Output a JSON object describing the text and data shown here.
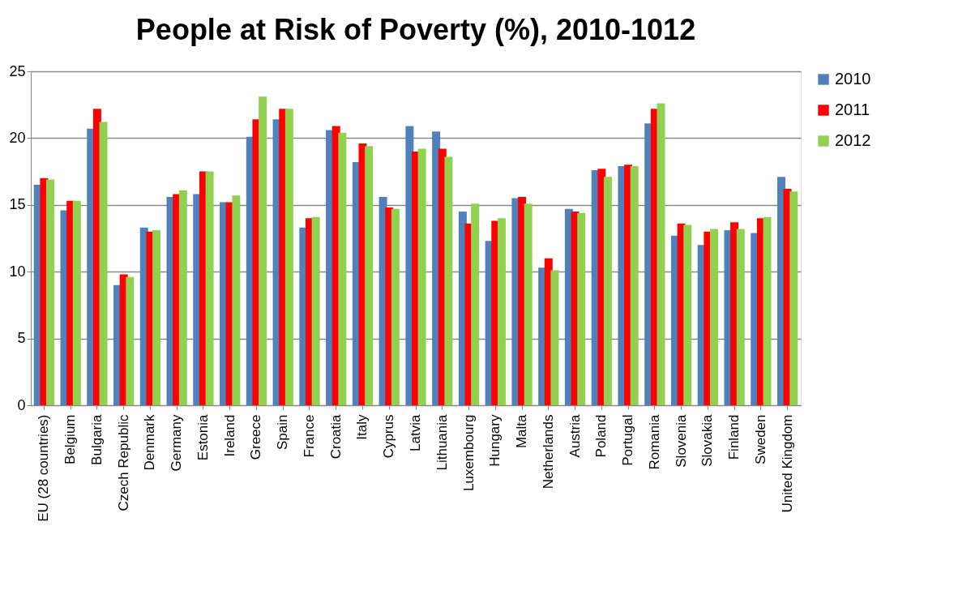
{
  "chart_data": {
    "type": "bar",
    "title": "People at Risk of Poverty (%), 2010-1012",
    "categories": [
      "EU (28 countries)",
      "Belgium",
      "Bulgaria",
      "Czech Republic",
      "Denmark",
      "Germany",
      "Estonia",
      "Ireland",
      "Greece",
      "Spain",
      "France",
      "Croatia",
      "Italy",
      "Cyprus",
      "Latvia",
      "Lithuania",
      "Luxembourg",
      "Hungary",
      "Malta",
      "Netherlands",
      "Austria",
      "Poland",
      "Portugal",
      "Romania",
      "Slovenia",
      "Slovakia",
      "Finland",
      "Sweden",
      "United Kingdom"
    ],
    "series": [
      {
        "name": "2010",
        "color": "#4f81bd",
        "values": [
          16.5,
          14.6,
          20.7,
          9.0,
          13.3,
          15.6,
          15.8,
          15.2,
          20.1,
          21.4,
          13.3,
          20.6,
          18.2,
          15.6,
          20.9,
          20.5,
          14.5,
          12.3,
          15.5,
          10.3,
          14.7,
          17.6,
          17.9,
          21.1,
          12.7,
          12.0,
          13.1,
          12.9,
          17.1
        ]
      },
      {
        "name": "2011",
        "color": "#ff0000",
        "values": [
          17.0,
          15.3,
          22.2,
          9.8,
          13.0,
          15.8,
          17.5,
          15.2,
          21.4,
          22.2,
          14.0,
          20.9,
          19.6,
          14.8,
          19.0,
          19.2,
          13.6,
          13.8,
          15.6,
          11.0,
          14.5,
          17.7,
          18.0,
          22.2,
          13.6,
          13.0,
          13.7,
          14.0,
          16.2
        ]
      },
      {
        "name": "2012",
        "color": "#92d050",
        "values": [
          16.9,
          15.3,
          21.2,
          9.6,
          13.1,
          16.1,
          17.5,
          15.7,
          23.1,
          22.2,
          14.1,
          20.4,
          19.4,
          14.7,
          19.2,
          18.6,
          15.1,
          14.0,
          15.1,
          10.1,
          14.4,
          17.1,
          17.9,
          22.6,
          13.5,
          13.2,
          13.2,
          14.1,
          16.0
        ]
      }
    ],
    "ylim": [
      0,
      25
    ],
    "yticks": [
      0,
      5,
      10,
      15,
      20,
      25
    ],
    "grid": "y",
    "legend": "right"
  }
}
